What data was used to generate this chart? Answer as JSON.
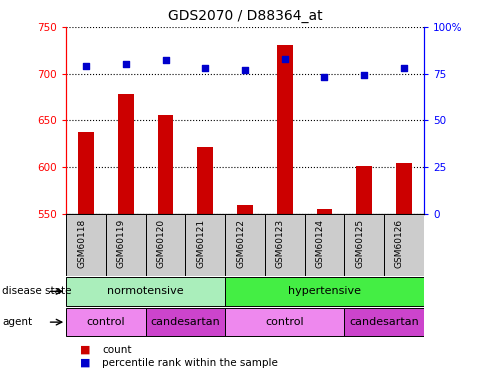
{
  "title": "GDS2070 / D88364_at",
  "samples": [
    "GSM60118",
    "GSM60119",
    "GSM60120",
    "GSM60121",
    "GSM60122",
    "GSM60123",
    "GSM60124",
    "GSM60125",
    "GSM60126"
  ],
  "counts": [
    638,
    678,
    656,
    622,
    560,
    730,
    556,
    601,
    605
  ],
  "percentiles": [
    79,
    80,
    82,
    78,
    77,
    83,
    73,
    74,
    78
  ],
  "ylim_left": [
    550,
    750
  ],
  "ylim_right": [
    0,
    100
  ],
  "yticks_left": [
    550,
    600,
    650,
    700,
    750
  ],
  "yticks_right": [
    0,
    25,
    50,
    75,
    100
  ],
  "bar_color": "#cc0000",
  "dot_color": "#0000cc",
  "bar_width": 0.4,
  "normotensive_color": "#aaeebb",
  "hypertensive_color": "#44ee44",
  "control_color": "#ee88ee",
  "candesartan_color": "#cc44cc",
  "sample_box_color": "#cccccc",
  "percentile_right_label": "100%"
}
